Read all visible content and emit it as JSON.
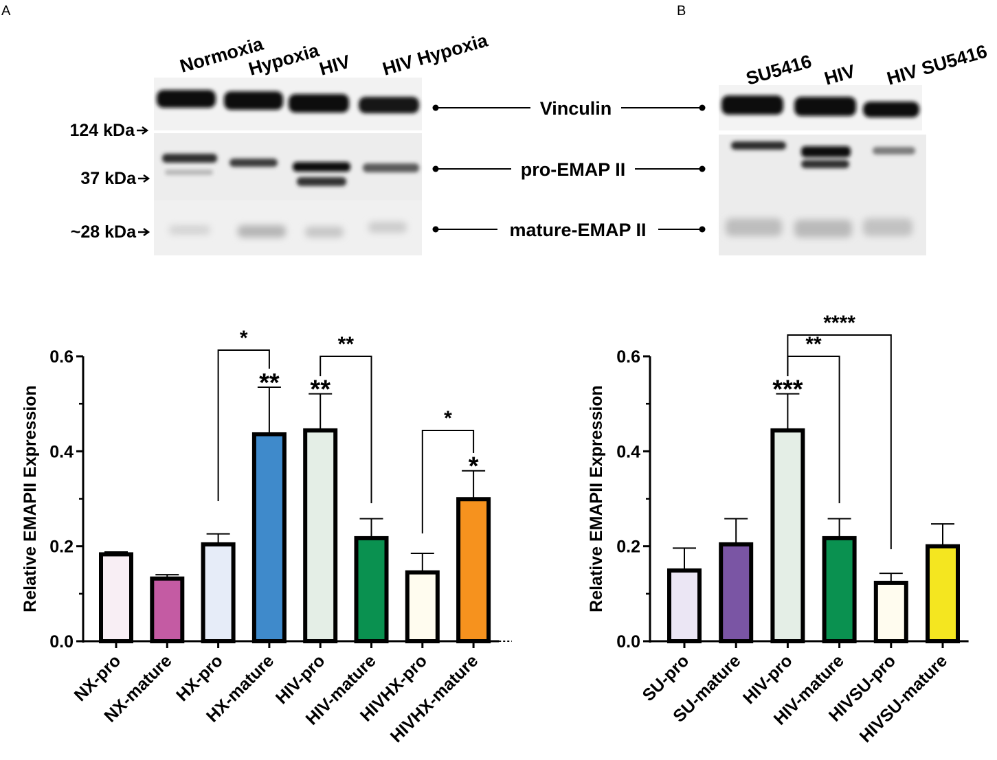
{
  "figure": {
    "panels": [
      {
        "letter": "A",
        "blot": {
          "lanes": [
            "Normoxia",
            "Hypoxia",
            "HIV",
            "HIV Hypoxia"
          ],
          "markers": [
            "124 kDa",
            "37 kDa",
            "~28 kDa"
          ],
          "bands": [
            "Vinculin",
            "pro-EMAP II",
            "mature-EMAP II"
          ]
        }
      },
      {
        "letter": "B",
        "blot": {
          "lanes": [
            "SU5416",
            "HIV",
            "HIV SU5416"
          ]
        }
      }
    ]
  },
  "chart_data": [
    {
      "type": "bar",
      "ylabel": "Relative EMAPII Expression",
      "ylim": [
        0,
        0.6
      ],
      "yticks": [
        "0.0",
        "0.2",
        "0.4",
        "0.6"
      ],
      "grid": false,
      "categories": [
        "NX-pro",
        "NX-mature",
        "HX-pro",
        "HX-mature",
        "HIV-pro",
        "HIV-mature",
        "HIVHX-pro",
        "HIVHX-mature"
      ],
      "values": [
        0.183,
        0.132,
        0.204,
        0.436,
        0.444,
        0.217,
        0.145,
        0.299
      ],
      "errors": [
        0.005,
        0.008,
        0.022,
        0.099,
        0.077,
        0.041,
        0.04,
        0.06
      ],
      "colors": [
        "#f8eef4",
        "#c45ba3",
        "#e6ecf8",
        "#3f8acb",
        "#e4eee6",
        "#0a9150",
        "#fffcef",
        "#f6921e"
      ],
      "bar_stars": [
        {
          "category": "HX-mature",
          "label": "**"
        },
        {
          "category": "HIV-pro",
          "label": "**"
        },
        {
          "category": "HIVHX-mature",
          "label": "*"
        }
      ],
      "comparisons": [
        {
          "from": "HX-pro",
          "to": "HX-mature",
          "label": "*"
        },
        {
          "from": "HIV-pro",
          "to": "HIV-mature",
          "label": "**"
        },
        {
          "from": "HIVHX-pro",
          "to": "HIVHX-mature",
          "label": "*"
        }
      ]
    },
    {
      "type": "bar",
      "ylabel": "Relative EMAPII Expression",
      "ylim": [
        0,
        0.6
      ],
      "yticks": [
        "0.0",
        "0.2",
        "0.4",
        "0.6"
      ],
      "grid": false,
      "categories": [
        "SU-pro",
        "SU-mature",
        "HIV-pro",
        "HIV-mature",
        "HIVSU-pro",
        "HIVSU-mature"
      ],
      "values": [
        0.149,
        0.204,
        0.444,
        0.217,
        0.123,
        0.2
      ],
      "errors": [
        0.047,
        0.054,
        0.077,
        0.041,
        0.02,
        0.047
      ],
      "colors": [
        "#ebe6f4",
        "#7a55a4",
        "#e4eee6",
        "#0a9150",
        "#fffcef",
        "#f4e620"
      ],
      "bar_stars": [
        {
          "category": "HIV-pro",
          "label": "***"
        }
      ],
      "comparisons": [
        {
          "from": "HIV-pro",
          "to": "HIV-mature",
          "label": "**"
        },
        {
          "from": "HIV-pro",
          "to": "HIVSU-pro",
          "label": "****"
        }
      ]
    }
  ]
}
